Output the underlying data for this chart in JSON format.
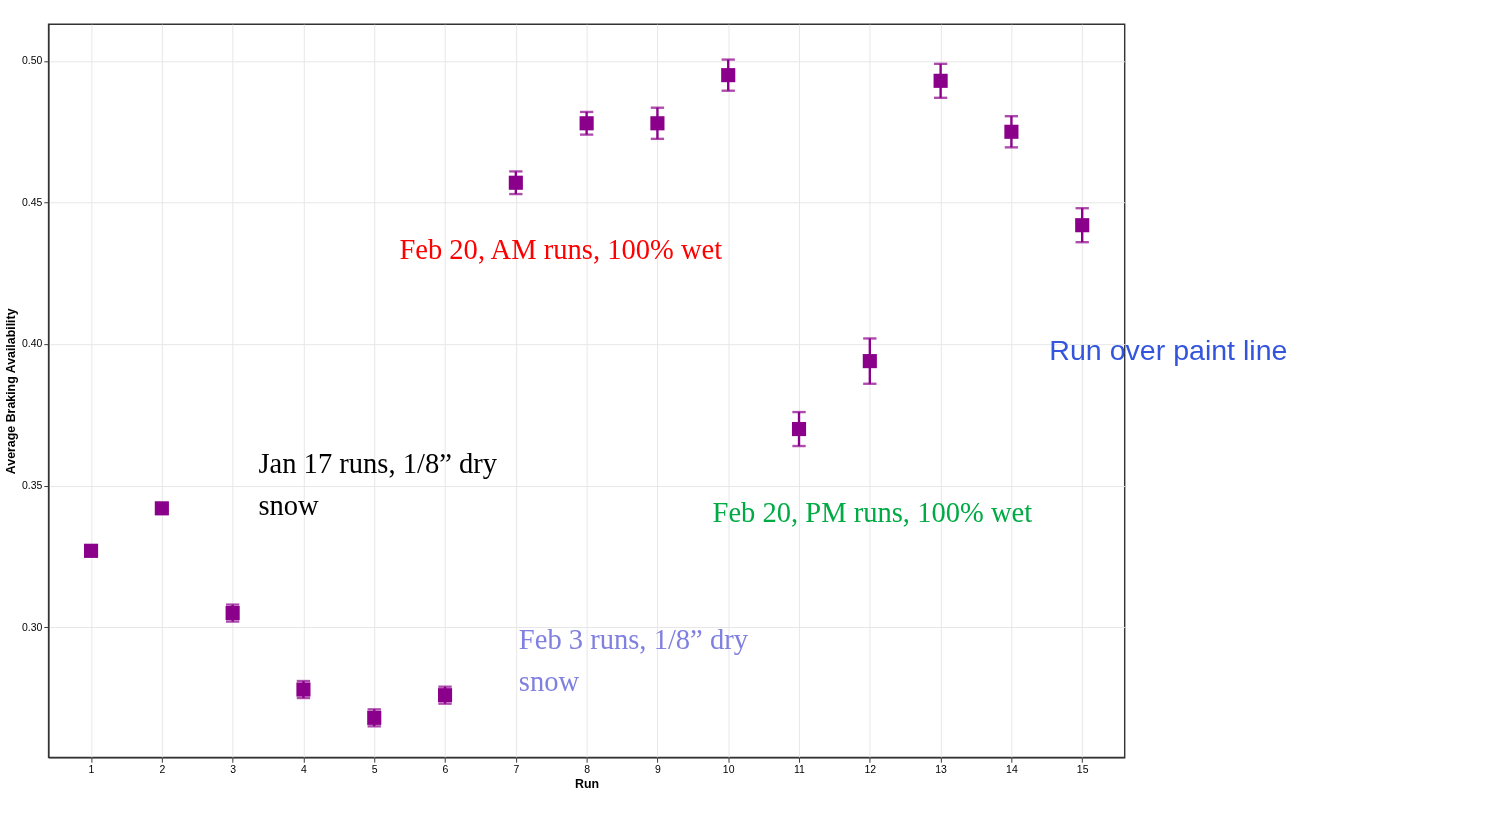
{
  "chart_data": {
    "type": "scatter",
    "xlabel": "Run",
    "ylabel": "Average Braking Availability",
    "x": [
      1,
      2,
      3,
      4,
      5,
      6,
      7,
      8,
      9,
      10,
      11,
      12,
      13,
      14,
      15
    ],
    "series": [
      {
        "color": "#8b008b",
        "values": [
          0.327,
          0.342,
          0.305,
          0.278,
          0.268,
          0.276,
          0.457,
          0.478,
          0.478,
          0.495,
          0.37,
          0.394,
          0.493,
          0.475,
          0.442
        ],
        "errors": [
          0.002,
          0.001,
          0.003,
          0.003,
          0.003,
          0.003,
          0.004,
          0.004,
          0.0055,
          0.0055,
          0.006,
          0.008,
          0.006,
          0.0055,
          0.006
        ]
      }
    ],
    "marker": "square",
    "xlim": [
      0.4,
      15.6
    ],
    "xticks": [
      1,
      2,
      3,
      4,
      5,
      6,
      7,
      8,
      9,
      10,
      11,
      12,
      13,
      14,
      15
    ],
    "ylim": [
      0.254,
      0.513
    ],
    "yticks": [
      {
        "value": 0.3,
        "label": "0.30"
      },
      {
        "value": 0.35,
        "label": "0.35"
      },
      {
        "value": 0.4,
        "label": "0.40"
      },
      {
        "value": 0.45,
        "label": "0.45"
      },
      {
        "value": 0.5,
        "label": "0.50"
      }
    ],
    "grid": true,
    "annotations": [
      "Jan 17 runs, 1/8” dry\nsnow",
      "Feb 3 runs, 1/8” dry\nsnow",
      "Feb 20, AM runs, 100% wet",
      "Feb 20, PM runs, 100% wet",
      "Run over paint line"
    ]
  }
}
